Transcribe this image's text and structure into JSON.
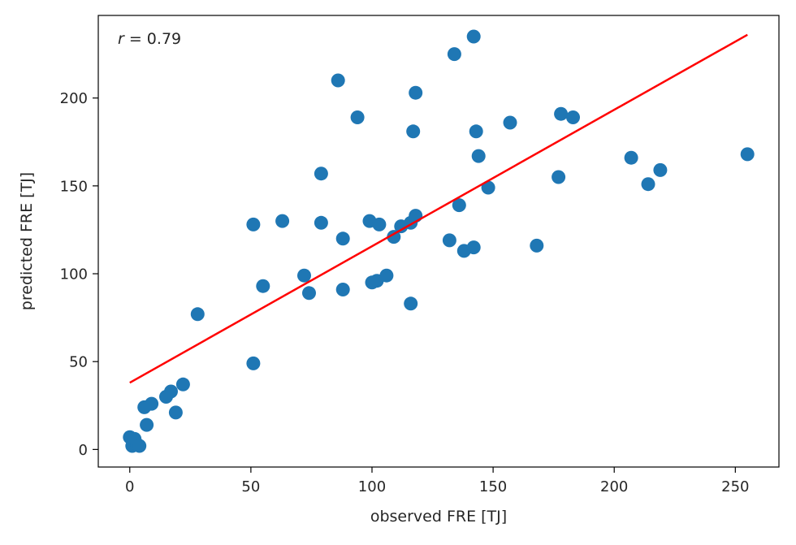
{
  "chart_data": {
    "type": "scatter",
    "title": "",
    "xlabel": "observed FRE [TJ]",
    "ylabel": "predicted FRE [TJ]",
    "xlim": [
      -13,
      268
    ],
    "ylim": [
      -10,
      247
    ],
    "xticks": [
      0,
      50,
      100,
      150,
      200,
      250
    ],
    "yticks": [
      0,
      50,
      100,
      150,
      200
    ],
    "grid": false,
    "annotation": {
      "italic": "r",
      "rest": " = 0.79"
    },
    "colors": {
      "points": "#1f77b4",
      "fit_line": "#ff0000",
      "axes": "#000000"
    },
    "points": [
      [
        0,
        7
      ],
      [
        1,
        2
      ],
      [
        2,
        6
      ],
      [
        3,
        3
      ],
      [
        4,
        2
      ],
      [
        6,
        24
      ],
      [
        7,
        14
      ],
      [
        9,
        26
      ],
      [
        15,
        30
      ],
      [
        17,
        33
      ],
      [
        19,
        21
      ],
      [
        22,
        37
      ],
      [
        28,
        77
      ],
      [
        51,
        128
      ],
      [
        51,
        49
      ],
      [
        55,
        93
      ],
      [
        63,
        130
      ],
      [
        72,
        99
      ],
      [
        74,
        89
      ],
      [
        79,
        157
      ],
      [
        79,
        129
      ],
      [
        86,
        210
      ],
      [
        88,
        120
      ],
      [
        88,
        91
      ],
      [
        94,
        189
      ],
      [
        99,
        130
      ],
      [
        100,
        95
      ],
      [
        102,
        96
      ],
      [
        103,
        128
      ],
      [
        106,
        99
      ],
      [
        109,
        121
      ],
      [
        112,
        127
      ],
      [
        116,
        83
      ],
      [
        116,
        129
      ],
      [
        117,
        181
      ],
      [
        118,
        203
      ],
      [
        118,
        133
      ],
      [
        132,
        119
      ],
      [
        134,
        225
      ],
      [
        136,
        139
      ],
      [
        138,
        113
      ],
      [
        142,
        235
      ],
      [
        142,
        115
      ],
      [
        143,
        181
      ],
      [
        144,
        167
      ],
      [
        148,
        149
      ],
      [
        157,
        186
      ],
      [
        168,
        116
      ],
      [
        177,
        155
      ],
      [
        178,
        191
      ],
      [
        183,
        189
      ],
      [
        207,
        166
      ],
      [
        214,
        151
      ],
      [
        219,
        159
      ],
      [
        255,
        168
      ]
    ],
    "fit_line": {
      "x": [
        0,
        255
      ],
      "y": [
        38,
        236
      ]
    }
  }
}
